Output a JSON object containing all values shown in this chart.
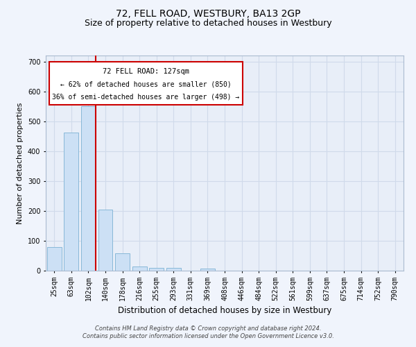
{
  "title": "72, FELL ROAD, WESTBURY, BA13 2GP",
  "subtitle": "Size of property relative to detached houses in Westbury",
  "xlabel": "Distribution of detached houses by size in Westbury",
  "ylabel": "Number of detached properties",
  "footer_line1": "Contains HM Land Registry data © Crown copyright and database right 2024.",
  "footer_line2": "Contains public sector information licensed under the Open Government Licence v3.0.",
  "bar_labels": [
    "25sqm",
    "63sqm",
    "102sqm",
    "140sqm",
    "178sqm",
    "216sqm",
    "255sqm",
    "293sqm",
    "331sqm",
    "369sqm",
    "408sqm",
    "446sqm",
    "484sqm",
    "522sqm",
    "561sqm",
    "599sqm",
    "637sqm",
    "675sqm",
    "714sqm",
    "752sqm",
    "790sqm"
  ],
  "bar_values": [
    78,
    463,
    550,
    204,
    57,
    14,
    9,
    9,
    0,
    8,
    0,
    0,
    0,
    0,
    0,
    0,
    0,
    0,
    0,
    0,
    0
  ],
  "bar_color": "#cce0f5",
  "bar_edge_color": "#88b8d8",
  "redline_x": 2.425,
  "redline_color": "#cc0000",
  "annotation_line1": "72 FELL ROAD: 127sqm",
  "annotation_line2": "← 62% of detached houses are smaller (850)",
  "annotation_line3": "36% of semi-detached houses are larger (498) →",
  "annotation_box_edge": "#cc0000",
  "ylim": [
    0,
    720
  ],
  "yticks": [
    0,
    100,
    200,
    300,
    400,
    500,
    600,
    700
  ],
  "grid_color": "#d0daea",
  "plot_bg_color": "#e8eef8",
  "fig_bg_color": "#f0f4fc",
  "title_fontsize": 10,
  "subtitle_fontsize": 9,
  "ylabel_fontsize": 8,
  "xlabel_fontsize": 8.5,
  "tick_fontsize": 7,
  "footer_fontsize": 6
}
